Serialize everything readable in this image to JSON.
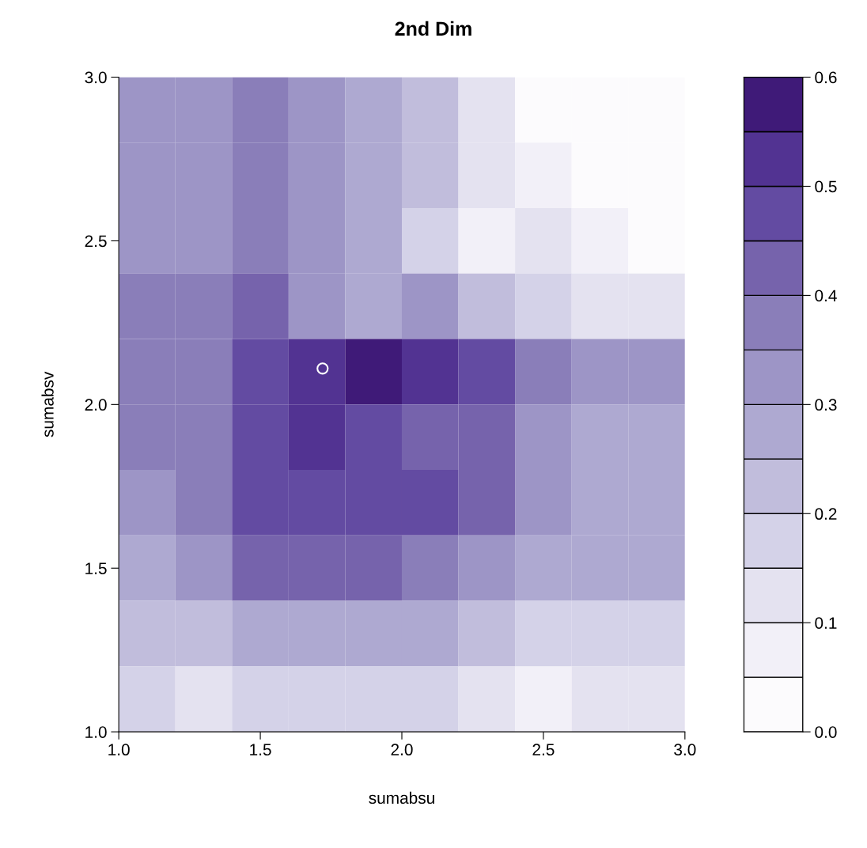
{
  "chart_data": {
    "type": "heatmap",
    "title": "2nd Dim",
    "xlabel": "sumabsu",
    "ylabel": "sumabsv",
    "x": [
      1.1,
      1.3,
      1.5,
      1.7,
      1.9,
      2.1,
      2.3,
      2.5,
      2.7,
      2.9
    ],
    "y": [
      2.9,
      2.7,
      2.5,
      2.3,
      2.1,
      1.9,
      1.7,
      1.5,
      1.3,
      1.1
    ],
    "cells": [
      [
        0.32,
        0.32,
        0.37,
        0.32,
        0.27,
        0.22,
        0.12,
        0.03,
        0.02,
        0.02
      ],
      [
        0.32,
        0.32,
        0.37,
        0.32,
        0.27,
        0.22,
        0.12,
        0.07,
        0.03,
        0.02
      ],
      [
        0.32,
        0.32,
        0.37,
        0.32,
        0.27,
        0.17,
        0.08,
        0.12,
        0.07,
        0.03
      ],
      [
        0.37,
        0.37,
        0.42,
        0.32,
        0.27,
        0.32,
        0.22,
        0.17,
        0.12,
        0.12
      ],
      [
        0.37,
        0.37,
        0.47,
        0.52,
        0.57,
        0.52,
        0.47,
        0.37,
        0.32,
        0.32
      ],
      [
        0.37,
        0.37,
        0.47,
        0.52,
        0.47,
        0.42,
        0.42,
        0.32,
        0.27,
        0.27
      ],
      [
        0.32,
        0.37,
        0.47,
        0.47,
        0.47,
        0.47,
        0.42,
        0.32,
        0.27,
        0.27
      ],
      [
        0.27,
        0.32,
        0.42,
        0.42,
        0.42,
        0.37,
        0.32,
        0.27,
        0.27,
        0.27
      ],
      [
        0.22,
        0.22,
        0.27,
        0.27,
        0.27,
        0.27,
        0.22,
        0.17,
        0.17,
        0.17
      ],
      [
        0.17,
        0.12,
        0.17,
        0.17,
        0.17,
        0.17,
        0.12,
        0.08,
        0.12,
        0.12
      ]
    ],
    "colors": [
      "#fcfbfd",
      "#f2f0f8",
      "#e4e2f0",
      "#d4d2e8",
      "#c1bddc",
      "#aea9d1",
      "#9d95c6",
      "#8a7eb9",
      "#7663ac",
      "#634ba2",
      "#523392",
      "#3f1a78"
    ],
    "clim": [
      0,
      0.6
    ],
    "cticks": [
      {
        "value": 0,
        "label": "0.0"
      },
      0.1,
      0.2,
      0.3,
      0.4,
      0.5,
      0.6
    ],
    "xlim": [
      1.0,
      3.0
    ],
    "ylim": [
      1.0,
      3.0
    ],
    "xticks": [
      {
        "value": 1,
        "label": "1.0"
      },
      1.5,
      {
        "value": 2,
        "label": "2.0"
      },
      2.5,
      {
        "value": 3,
        "label": "3.0"
      }
    ],
    "yticks": [
      {
        "value": 1,
        "label": "1.0"
      },
      1.5,
      {
        "value": 2,
        "label": "2.0"
      },
      2.5,
      {
        "value": 3,
        "label": "3.0"
      }
    ],
    "series": [
      {
        "type": "scatter",
        "x": [
          1.72
        ],
        "values": [
          2.11
        ],
        "color": "#ffffff"
      }
    ],
    "marker": "circle",
    "grid": false
  }
}
